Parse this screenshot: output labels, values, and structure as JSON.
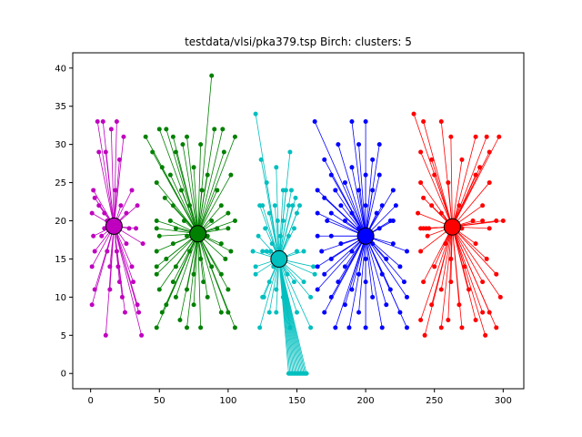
{
  "chart_data": {
    "type": "scatter",
    "title": "testdata/vlsi/pka379.tsp Birch: clusters: 5",
    "xlabel": "",
    "ylabel": "",
    "xlim": [
      -13,
      315
    ],
    "ylim": [
      -2,
      42
    ],
    "xticks": [
      0,
      50,
      100,
      150,
      200,
      250,
      300
    ],
    "yticks": [
      0,
      5,
      10,
      15,
      20,
      25,
      30,
      35,
      40
    ],
    "grid": false,
    "legend": "none",
    "clusters": [
      {
        "color": "#bf00bf",
        "center": [
          17,
          19.3
        ],
        "points": [
          [
            5,
            33
          ],
          [
            9,
            33
          ],
          [
            15,
            32
          ],
          [
            6,
            29
          ],
          [
            11,
            29
          ],
          [
            2,
            24
          ],
          [
            3,
            23
          ],
          [
            18,
            24
          ],
          [
            6,
            22
          ],
          [
            30,
            24
          ],
          [
            1,
            21
          ],
          [
            10,
            21
          ],
          [
            26,
            21
          ],
          [
            34,
            22
          ],
          [
            12,
            20
          ],
          [
            2,
            18
          ],
          [
            8,
            18
          ],
          [
            26,
            17
          ],
          [
            3,
            16
          ],
          [
            12,
            16
          ],
          [
            19,
            16
          ],
          [
            38,
            17
          ],
          [
            1,
            14
          ],
          [
            14,
            14
          ],
          [
            20,
            14
          ],
          [
            30,
            14
          ],
          [
            21,
            12
          ],
          [
            31,
            12
          ],
          [
            3,
            11
          ],
          [
            14,
            11
          ],
          [
            23,
            10
          ],
          [
            1,
            9
          ],
          [
            34,
            9
          ],
          [
            11,
            5
          ],
          [
            25,
            8
          ],
          [
            35,
            8
          ],
          [
            37,
            5
          ],
          [
            10,
            19
          ],
          [
            28,
            19
          ],
          [
            19,
            33
          ],
          [
            24,
            31
          ],
          [
            21,
            28
          ],
          [
            22,
            22
          ],
          [
            33,
            19
          ]
        ]
      },
      {
        "color": "#008000",
        "center": [
          78,
          18.3
        ],
        "points": [
          [
            88,
            39
          ],
          [
            50,
            32
          ],
          [
            55,
            32
          ],
          [
            60,
            31
          ],
          [
            70,
            31
          ],
          [
            90,
            32
          ],
          [
            96,
            32
          ],
          [
            105,
            31
          ],
          [
            40,
            31
          ],
          [
            67,
            30
          ],
          [
            45,
            29
          ],
          [
            62,
            29
          ],
          [
            80,
            30
          ],
          [
            52,
            27
          ],
          [
            75,
            27
          ],
          [
            97,
            29
          ],
          [
            58,
            26
          ],
          [
            85,
            26
          ],
          [
            102,
            26
          ],
          [
            48,
            25
          ],
          [
            66,
            24
          ],
          [
            81,
            24
          ],
          [
            92,
            24
          ],
          [
            54,
            23
          ],
          [
            60,
            22
          ],
          [
            72,
            22
          ],
          [
            95,
            22
          ],
          [
            100,
            21
          ],
          [
            48,
            20
          ],
          [
            58,
            20
          ],
          [
            68,
            20
          ],
          [
            88,
            20
          ],
          [
            105,
            20
          ],
          [
            48,
            19
          ],
          [
            62,
            19
          ],
          [
            75,
            19
          ],
          [
            92,
            19
          ],
          [
            100,
            19
          ],
          [
            50,
            18
          ],
          [
            70,
            18
          ],
          [
            85,
            18
          ],
          [
            60,
            17
          ],
          [
            95,
            17
          ],
          [
            48,
            16
          ],
          [
            72,
            16
          ],
          [
            102,
            16
          ],
          [
            55,
            15
          ],
          [
            80,
            15
          ],
          [
            98,
            15
          ],
          [
            48,
            14
          ],
          [
            62,
            14
          ],
          [
            88,
            14
          ],
          [
            48,
            13
          ],
          [
            75,
            13
          ],
          [
            95,
            13
          ],
          [
            60,
            12
          ],
          [
            82,
            12
          ],
          [
            50,
            11
          ],
          [
            70,
            11
          ],
          [
            100,
            11
          ],
          [
            62,
            10
          ],
          [
            85,
            10
          ],
          [
            55,
            9
          ],
          [
            75,
            9
          ],
          [
            95,
            8
          ],
          [
            52,
            8
          ],
          [
            65,
            7
          ],
          [
            80,
            6
          ],
          [
            48,
            6
          ],
          [
            70,
            6
          ],
          [
            105,
            6
          ],
          [
            100,
            8
          ]
        ]
      },
      {
        "color": "#00bfbf",
        "center": [
          137,
          15
        ],
        "points": [
          [
            120,
            34
          ],
          [
            145,
            29
          ],
          [
            124,
            28
          ],
          [
            135,
            27
          ],
          [
            128,
            25
          ],
          [
            140,
            24
          ],
          [
            142,
            24
          ],
          [
            125,
            22
          ],
          [
            123,
            22
          ],
          [
            134,
            22
          ],
          [
            144,
            22
          ],
          [
            147,
            22
          ],
          [
            149,
            23
          ],
          [
            150,
            21
          ],
          [
            130,
            21
          ],
          [
            136,
            20
          ],
          [
            140,
            20
          ],
          [
            127,
            19
          ],
          [
            122,
            18
          ],
          [
            138,
            18
          ],
          [
            144,
            18
          ],
          [
            148,
            19
          ],
          [
            132,
            17
          ],
          [
            125,
            16
          ],
          [
            128,
            16
          ],
          [
            131,
            16
          ],
          [
            150,
            16
          ],
          [
            120,
            14
          ],
          [
            120,
            13
          ],
          [
            130,
            12
          ],
          [
            148,
            12
          ],
          [
            135,
            11
          ],
          [
            162,
            14
          ],
          [
            163,
            13
          ],
          [
            125,
            10
          ],
          [
            140,
            10
          ],
          [
            155,
            12
          ],
          [
            160,
            10
          ],
          [
            130,
            8
          ],
          [
            150,
            8
          ],
          [
            123,
            6
          ],
          [
            160,
            6
          ],
          [
            145,
            6
          ],
          [
            146,
            24
          ],
          [
            143,
            13
          ],
          [
            152,
            22
          ],
          [
            141,
            15
          ],
          [
            133,
            14
          ],
          [
            155,
            16
          ],
          [
            118,
            16
          ],
          [
            126,
            10
          ],
          [
            135,
            8
          ],
          [
            144,
            0
          ],
          [
            145,
            0
          ],
          [
            146,
            0
          ],
          [
            147,
            0
          ],
          [
            148,
            0
          ],
          [
            149,
            0
          ],
          [
            150,
            0
          ],
          [
            151,
            0
          ],
          [
            152,
            0
          ],
          [
            153,
            0
          ],
          [
            154,
            0
          ],
          [
            155,
            0
          ],
          [
            156,
            0
          ],
          [
            157,
            0
          ]
        ]
      },
      {
        "color": "#0000ff",
        "center": [
          200,
          18
        ],
        "points": [
          [
            163,
            33
          ],
          [
            190,
            33
          ],
          [
            195,
            30
          ],
          [
            200,
            33
          ],
          [
            210,
            30
          ],
          [
            180,
            30
          ],
          [
            170,
            28
          ],
          [
            190,
            27
          ],
          [
            205,
            28
          ],
          [
            175,
            26
          ],
          [
            185,
            25
          ],
          [
            200,
            26
          ],
          [
            210,
            26
          ],
          [
            165,
            24
          ],
          [
            178,
            24
          ],
          [
            195,
            24
          ],
          [
            205,
            24
          ],
          [
            220,
            24
          ],
          [
            170,
            23
          ],
          [
            182,
            22
          ],
          [
            200,
            22
          ],
          [
            212,
            22
          ],
          [
            165,
            21
          ],
          [
            175,
            21
          ],
          [
            190,
            21
          ],
          [
            208,
            21
          ],
          [
            222,
            22
          ],
          [
            172,
            20
          ],
          [
            185,
            20
          ],
          [
            218,
            20
          ],
          [
            220,
            20
          ],
          [
            165,
            18
          ],
          [
            195,
            19
          ],
          [
            210,
            19
          ],
          [
            175,
            18
          ],
          [
            182,
            17
          ],
          [
            205,
            17
          ],
          [
            220,
            17
          ],
          [
            168,
            16
          ],
          [
            190,
            16
          ],
          [
            230,
            16
          ],
          [
            175,
            15
          ],
          [
            200,
            15
          ],
          [
            215,
            15
          ],
          [
            165,
            14
          ],
          [
            185,
            14
          ],
          [
            225,
            14
          ],
          [
            170,
            13
          ],
          [
            195,
            13
          ],
          [
            212,
            13
          ],
          [
            180,
            12
          ],
          [
            200,
            12
          ],
          [
            228,
            12
          ],
          [
            165,
            11
          ],
          [
            190,
            11
          ],
          [
            218,
            11
          ],
          [
            175,
            10
          ],
          [
            205,
            10
          ],
          [
            230,
            10
          ],
          [
            185,
            9
          ],
          [
            215,
            9
          ],
          [
            170,
            8
          ],
          [
            195,
            8
          ],
          [
            225,
            8
          ],
          [
            178,
            6
          ],
          [
            200,
            6
          ],
          [
            212,
            6
          ],
          [
            230,
            6
          ],
          [
            188,
            6
          ]
        ]
      },
      {
        "color": "#ff0000",
        "center": [
          263,
          19.2
        ],
        "points": [
          [
            235,
            34
          ],
          [
            242,
            33
          ],
          [
            255,
            33
          ],
          [
            262,
            31
          ],
          [
            280,
            31
          ],
          [
            288,
            31
          ],
          [
            297,
            31
          ],
          [
            290,
            29
          ],
          [
            240,
            29
          ],
          [
            248,
            28
          ],
          [
            270,
            28
          ],
          [
            283,
            27
          ],
          [
            250,
            26
          ],
          [
            280,
            26
          ],
          [
            240,
            25
          ],
          [
            260,
            25
          ],
          [
            290,
            25
          ],
          [
            242,
            23
          ],
          [
            248,
            22
          ],
          [
            268,
            22
          ],
          [
            285,
            22
          ],
          [
            238,
            21
          ],
          [
            255,
            21
          ],
          [
            278,
            20
          ],
          [
            295,
            20
          ],
          [
            285,
            20
          ],
          [
            300,
            20
          ],
          [
            240,
            19
          ],
          [
            242,
            19
          ],
          [
            244,
            19
          ],
          [
            246,
            19
          ],
          [
            270,
            19
          ],
          [
            290,
            19
          ],
          [
            245,
            18
          ],
          [
            258,
            17
          ],
          [
            280,
            17
          ],
          [
            240,
            16
          ],
          [
            262,
            15
          ],
          [
            288,
            15
          ],
          [
            250,
            14
          ],
          [
            272,
            14
          ],
          [
            295,
            13
          ],
          [
            242,
            12
          ],
          [
            262,
            12
          ],
          [
            285,
            12
          ],
          [
            255,
            11
          ],
          [
            275,
            11
          ],
          [
            298,
            10
          ],
          [
            248,
            9
          ],
          [
            268,
            9
          ],
          [
            285,
            8
          ],
          [
            290,
            8
          ],
          [
            240,
            7
          ],
          [
            260,
            7
          ],
          [
            280,
            7
          ],
          [
            295,
            6
          ],
          [
            255,
            6
          ],
          [
            270,
            6
          ],
          [
            243,
            5
          ],
          [
            287,
            5
          ]
        ]
      }
    ]
  }
}
